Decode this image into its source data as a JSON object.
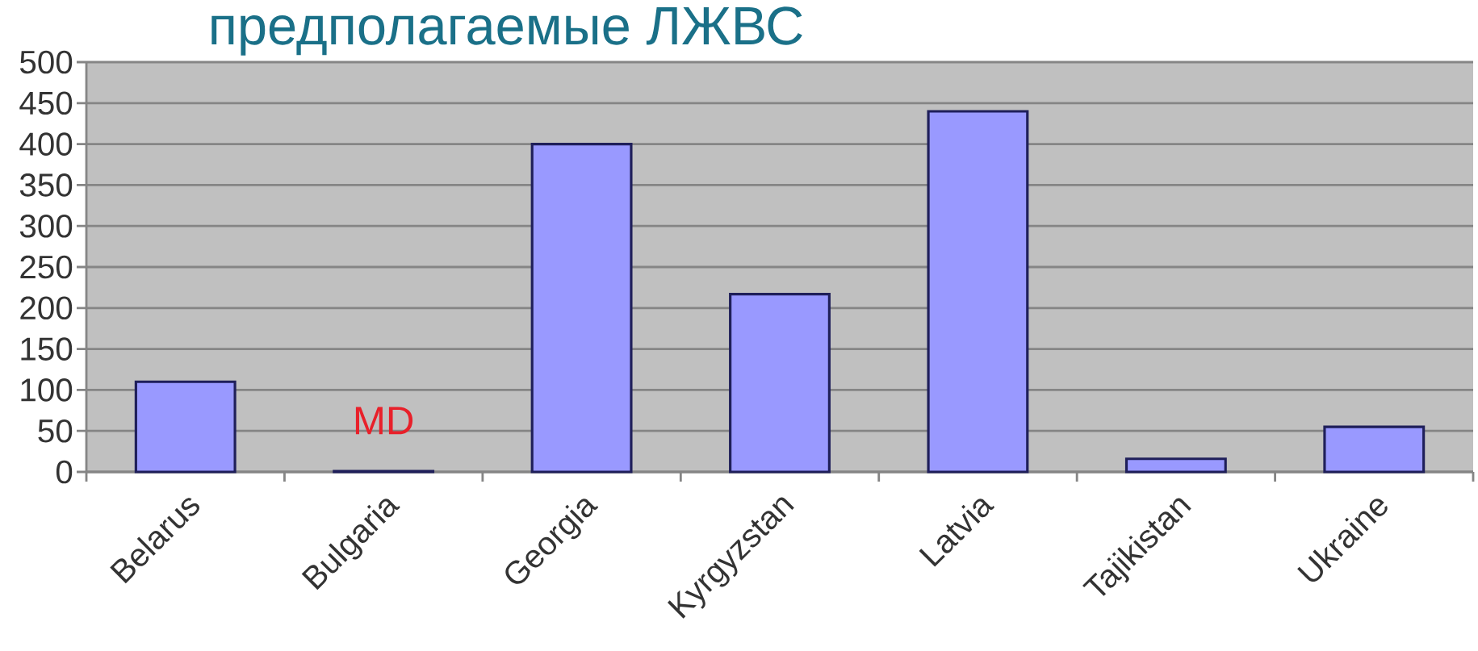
{
  "chart_data": {
    "type": "bar",
    "title": "предполагаемые ЛЖВС",
    "categories": [
      "Belarus",
      "Bulgaria",
      "Georgia",
      "Kyrgyzstan",
      "Latvia",
      "Tajikistan",
      "Ukraine"
    ],
    "values": [
      110,
      1,
      400,
      217,
      440,
      16,
      55
    ],
    "color": "#9999ff",
    "ylim": [
      0,
      500
    ],
    "yticks": [
      0,
      50,
      100,
      150,
      200,
      250,
      300,
      350,
      400,
      450,
      500
    ],
    "grid": "y",
    "annotations": [
      "MD"
    ]
  }
}
